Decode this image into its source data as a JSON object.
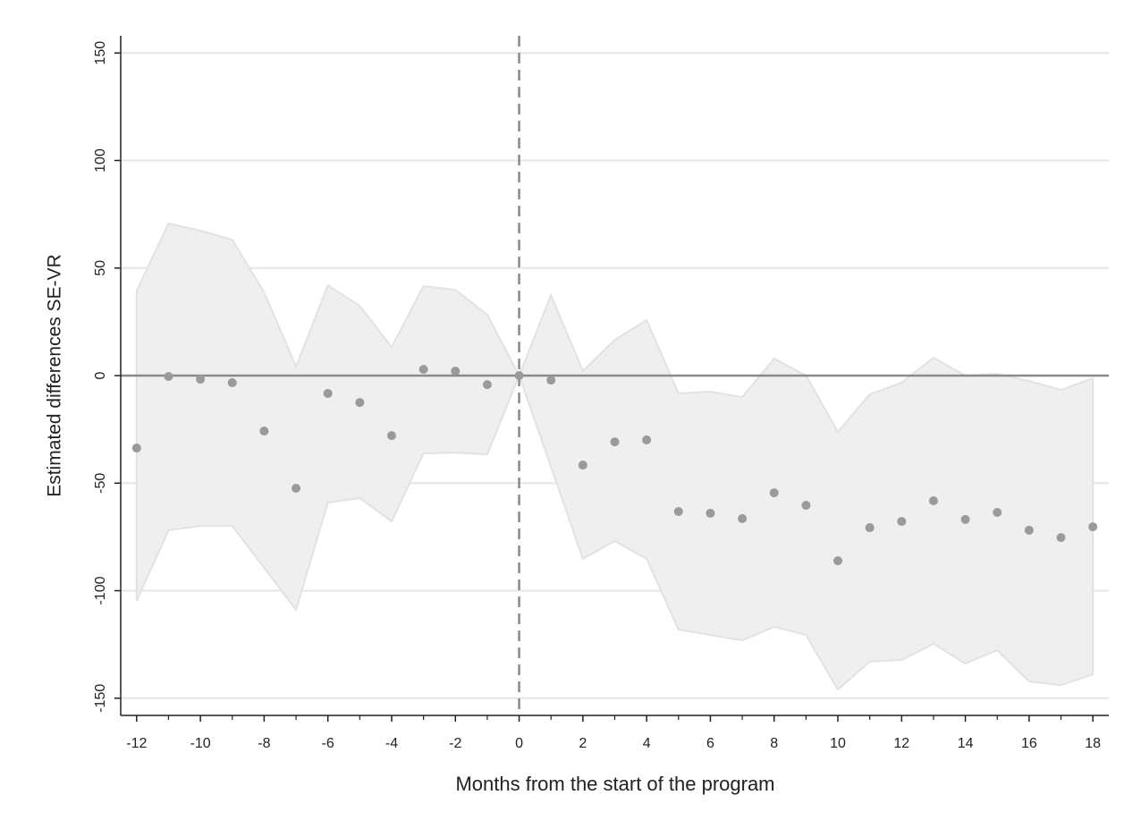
{
  "chart_data": {
    "type": "scatter",
    "x_label": "Months from the start of the program",
    "y_label": "Estimated differences SE-VR",
    "x": [
      -12,
      -11,
      -10,
      -9,
      -8,
      -7,
      -6,
      -5,
      -4,
      -3,
      -2,
      -1,
      0,
      1,
      2,
      3,
      4,
      5,
      6,
      7,
      8,
      9,
      10,
      11,
      12,
      13,
      14,
      15,
      16,
      17,
      18
    ],
    "series": [
      {
        "color": "#9a9a9a",
        "band_color": "#efefef",
        "values": [
          -33.7,
          -0.4,
          -1.7,
          -3.3,
          -25.8,
          -52.4,
          -8.3,
          -12.5,
          -27.9,
          2.9,
          2.1,
          -4.2,
          0,
          -2.1,
          -41.6,
          -30.8,
          -29.9,
          -63.2,
          -64.0,
          -66.5,
          -54.5,
          -60.3,
          -86.1,
          -70.7,
          -67.8,
          -58.2,
          -66.9,
          -63.6,
          -71.9,
          -75.3,
          -70.3
        ],
        "upper": [
          39.5,
          70.7,
          67.4,
          63.2,
          38.7,
          4.2,
          42.0,
          32.4,
          13.3,
          41.6,
          39.9,
          28.3,
          0,
          37.4,
          2.1,
          16.6,
          25.8,
          -8.3,
          -7.5,
          -10.0,
          7.9,
          0,
          -26.2,
          -8.7,
          -3.3,
          8.3,
          0,
          0.8,
          -2.5,
          -6.7,
          -1.2
        ],
        "lower": [
          -104.8,
          -71.9,
          -69.9,
          -69.9,
          -89.4,
          -108.9,
          -59.0,
          -57.0,
          -67.8,
          -36.2,
          -35.8,
          -36.6,
          0,
          -42.4,
          -85.2,
          -76.9,
          -85.2,
          -118.1,
          -120.6,
          -123.1,
          -116.8,
          -120.6,
          -146.0,
          -133.0,
          -132.2,
          -124.7,
          -133.9,
          -127.7,
          -142.2,
          -143.9,
          -138.9
        ]
      }
    ],
    "xlim": [
      -12.5,
      18.5
    ],
    "ylim": [
      -158,
      158
    ],
    "xticks": [
      -12,
      -10,
      -8,
      -6,
      -4,
      -2,
      0,
      2,
      4,
      6,
      8,
      10,
      12,
      14,
      16,
      18
    ],
    "xminor_ticks": [
      -11,
      -9,
      -7,
      -5,
      -3,
      -1,
      1,
      3,
      5,
      7,
      9,
      11,
      13,
      15,
      17
    ],
    "yticks": [
      -150,
      -100,
      -50,
      0,
      50,
      100,
      150
    ],
    "grid": true,
    "hline": 0,
    "vline": 0
  }
}
